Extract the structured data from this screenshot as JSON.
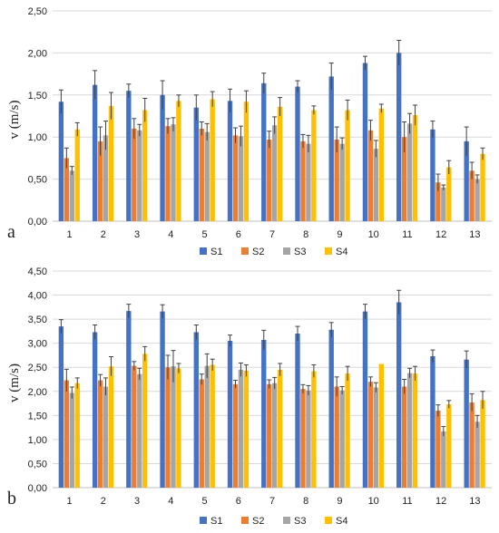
{
  "chart_data": [
    {
      "type": "bar",
      "panel_label": "a",
      "ylabel": "v (m/s)",
      "ylim": [
        0,
        2.5
      ],
      "ytick_step": 0.5,
      "grid": true,
      "legend_position": "bottom",
      "categories": [
        "1",
        "2",
        "3",
        "4",
        "5",
        "6",
        "7",
        "8",
        "9",
        "10",
        "11",
        "12",
        "13"
      ],
      "series": [
        {
          "name": "S1",
          "color": "#4472C4",
          "values": [
            1.42,
            1.62,
            1.55,
            1.5,
            1.35,
            1.43,
            1.64,
            1.6,
            1.72,
            1.88,
            2.0,
            1.09,
            0.95
          ],
          "errors": [
            0.14,
            0.17,
            0.08,
            0.17,
            0.15,
            0.14,
            0.12,
            0.07,
            0.16,
            0.08,
            0.15,
            0.1,
            0.17
          ]
        },
        {
          "name": "S2",
          "color": "#ED7D31",
          "values": [
            0.75,
            0.95,
            1.1,
            1.13,
            1.1,
            1.02,
            0.97,
            0.95,
            0.97,
            1.08,
            1.0,
            0.46,
            0.6
          ],
          "errors": [
            0.12,
            0.17,
            0.12,
            0.09,
            0.08,
            0.09,
            0.1,
            0.08,
            0.15,
            0.12,
            0.18,
            0.1,
            0.1
          ]
        },
        {
          "name": "S3",
          "color": "#A5A5A5",
          "values": [
            0.6,
            1.02,
            1.08,
            1.15,
            1.06,
            1.01,
            1.14,
            0.92,
            0.92,
            0.86,
            1.16,
            0.4,
            0.5
          ],
          "errors": [
            0.05,
            0.17,
            0.07,
            0.08,
            0.1,
            0.12,
            0.1,
            0.1,
            0.07,
            0.1,
            0.12,
            0.03,
            0.05
          ]
        },
        {
          "name": "S4",
          "color": "#FFC000",
          "values": [
            1.09,
            1.37,
            1.32,
            1.43,
            1.45,
            1.42,
            1.36,
            1.32,
            1.32,
            1.34,
            1.26,
            0.64,
            0.8
          ],
          "errors": [
            0.08,
            0.16,
            0.14,
            0.07,
            0.09,
            0.13,
            0.11,
            0.05,
            0.12,
            0.05,
            0.12,
            0.08,
            0.07
          ]
        }
      ]
    },
    {
      "type": "bar",
      "panel_label": "b",
      "ylabel": "v (m/s)",
      "ylim": [
        0,
        4.5
      ],
      "ytick_step": 0.5,
      "grid": true,
      "legend_position": "bottom",
      "categories": [
        "1",
        "2",
        "3",
        "4",
        "5",
        "6",
        "7",
        "8",
        "9",
        "10",
        "11",
        "12",
        "13"
      ],
      "series": [
        {
          "name": "S1",
          "color": "#4472C4",
          "values": [
            3.35,
            3.23,
            3.67,
            3.66,
            3.23,
            3.05,
            3.07,
            3.2,
            3.28,
            3.66,
            3.85,
            2.73,
            2.66
          ],
          "errors": [
            0.14,
            0.15,
            0.14,
            0.14,
            0.15,
            0.12,
            0.2,
            0.15,
            0.15,
            0.15,
            0.25,
            0.13,
            0.18
          ]
        },
        {
          "name": "S2",
          "color": "#ED7D31",
          "values": [
            2.23,
            2.23,
            2.53,
            2.5,
            2.25,
            2.15,
            2.15,
            2.05,
            2.1,
            2.2,
            2.1,
            1.6,
            1.77
          ],
          "errors": [
            0.23,
            0.12,
            0.09,
            0.25,
            0.11,
            0.08,
            0.09,
            0.09,
            0.2,
            0.1,
            0.15,
            0.12,
            0.18
          ]
        },
        {
          "name": "S3",
          "color": "#A5A5A5",
          "values": [
            1.97,
            2.1,
            2.36,
            2.52,
            2.53,
            2.45,
            2.17,
            2.02,
            2.02,
            2.08,
            2.38,
            1.17,
            1.37
          ],
          "errors": [
            0.12,
            0.18,
            0.12,
            0.33,
            0.25,
            0.14,
            0.12,
            0.1,
            0.08,
            0.1,
            0.1,
            0.1,
            0.13
          ]
        },
        {
          "name": "S4",
          "color": "#FFC000",
          "values": [
            2.17,
            2.52,
            2.78,
            2.48,
            2.55,
            2.43,
            2.45,
            2.42,
            2.37,
            2.57,
            2.37,
            1.73,
            1.82
          ],
          "errors": [
            0.11,
            0.2,
            0.15,
            0.1,
            0.12,
            0.12,
            0.13,
            0.13,
            0.15,
            0.0,
            0.15,
            0.08,
            0.18
          ]
        }
      ]
    }
  ]
}
